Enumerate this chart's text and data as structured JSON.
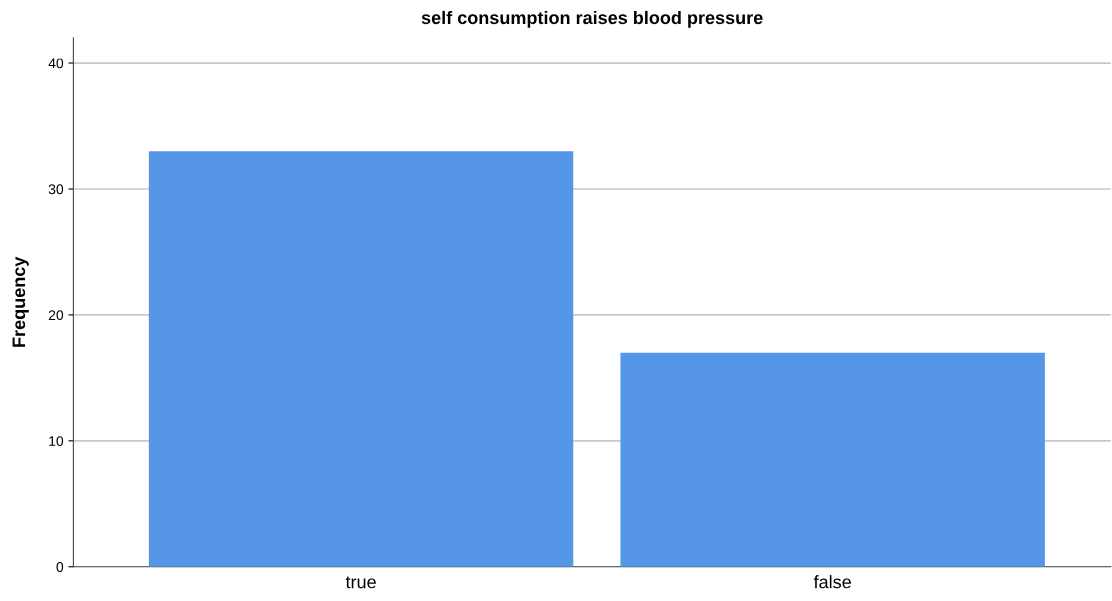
{
  "chart_data": {
    "type": "bar",
    "title": "self consumption raises blood pressure",
    "ylabel": "Frequency",
    "categories": [
      "true",
      "false"
    ],
    "values": [
      33,
      17
    ],
    "color": "#5596e6",
    "ylim": [
      0,
      42
    ],
    "yticks": [
      0,
      10,
      20,
      30,
      40
    ],
    "grid": "y"
  }
}
